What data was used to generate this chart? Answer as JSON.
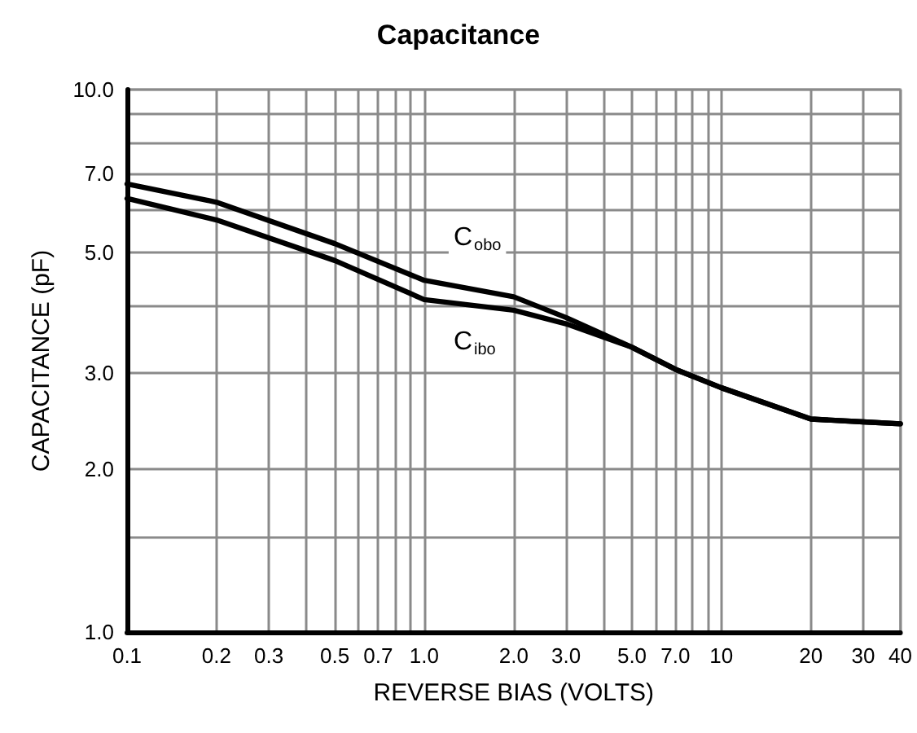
{
  "chart_data": {
    "type": "line",
    "title": "Capacitance",
    "xlabel": "REVERSE BIAS (VOLTS)",
    "ylabel": "CAPACITANCE (pF)",
    "log": "xy",
    "grid": true,
    "legend": false,
    "marker": "none",
    "line_style": "solid",
    "xlim": [
      0.1,
      40
    ],
    "ylim": [
      1,
      10
    ],
    "xticks": [
      {
        "value": 0.1,
        "label": "0.1"
      },
      {
        "value": 0.2,
        "label": "0.2"
      },
      {
        "value": 0.3,
        "label": "0.3"
      },
      {
        "value": 0.4,
        "label": null
      },
      {
        "value": 0.5,
        "label": "0.5"
      },
      {
        "value": 0.6,
        "label": null
      },
      {
        "value": 0.7,
        "label": "0.7"
      },
      {
        "value": 0.8,
        "label": null
      },
      {
        "value": 0.9,
        "label": null
      },
      {
        "value": 1,
        "label": "1.0"
      },
      {
        "value": 2,
        "label": "2.0"
      },
      {
        "value": 3,
        "label": "3.0"
      },
      {
        "value": 4,
        "label": null
      },
      {
        "value": 5,
        "label": "5.0"
      },
      {
        "value": 6,
        "label": null
      },
      {
        "value": 7,
        "label": "7.0"
      },
      {
        "value": 8,
        "label": null
      },
      {
        "value": 9,
        "label": null
      },
      {
        "value": 10,
        "label": "10"
      },
      {
        "value": 20,
        "label": "20"
      },
      {
        "value": 30,
        "label": "30"
      },
      {
        "value": 40,
        "label": "40"
      }
    ],
    "yticks": [
      {
        "value": 1,
        "label": "1.0"
      },
      {
        "value": 1.5,
        "label": null
      },
      {
        "value": 2,
        "label": "2.0"
      },
      {
        "value": 3,
        "label": "3.0"
      },
      {
        "value": 4,
        "label": null
      },
      {
        "value": 5,
        "label": "5.0"
      },
      {
        "value": 6,
        "label": null
      },
      {
        "value": 7,
        "label": "7.0"
      },
      {
        "value": 8,
        "label": null
      },
      {
        "value": 9,
        "label": null
      },
      {
        "value": 10,
        "label": "10.0"
      }
    ],
    "series": [
      {
        "name": "C$_{obo}$",
        "color": "#000000",
        "x": [
          0.1,
          0.2,
          0.5,
          1,
          2,
          3,
          5,
          7,
          10,
          20,
          30,
          40
        ],
        "values": [
          6.7,
          6.2,
          5.2,
          4.45,
          4.15,
          3.8,
          3.35,
          3.05,
          2.82,
          2.47,
          2.44,
          2.42
        ]
      },
      {
        "name": "C$_{ibo}$",
        "color": "#000000",
        "x": [
          0.1,
          0.2,
          0.5,
          1,
          2,
          3,
          5,
          7,
          10,
          20,
          30,
          40
        ],
        "values": [
          6.3,
          5.75,
          4.84,
          4.1,
          3.92,
          3.7,
          3.35,
          3.05,
          2.82,
          2.47,
          2.44,
          2.42
        ]
      }
    ]
  }
}
